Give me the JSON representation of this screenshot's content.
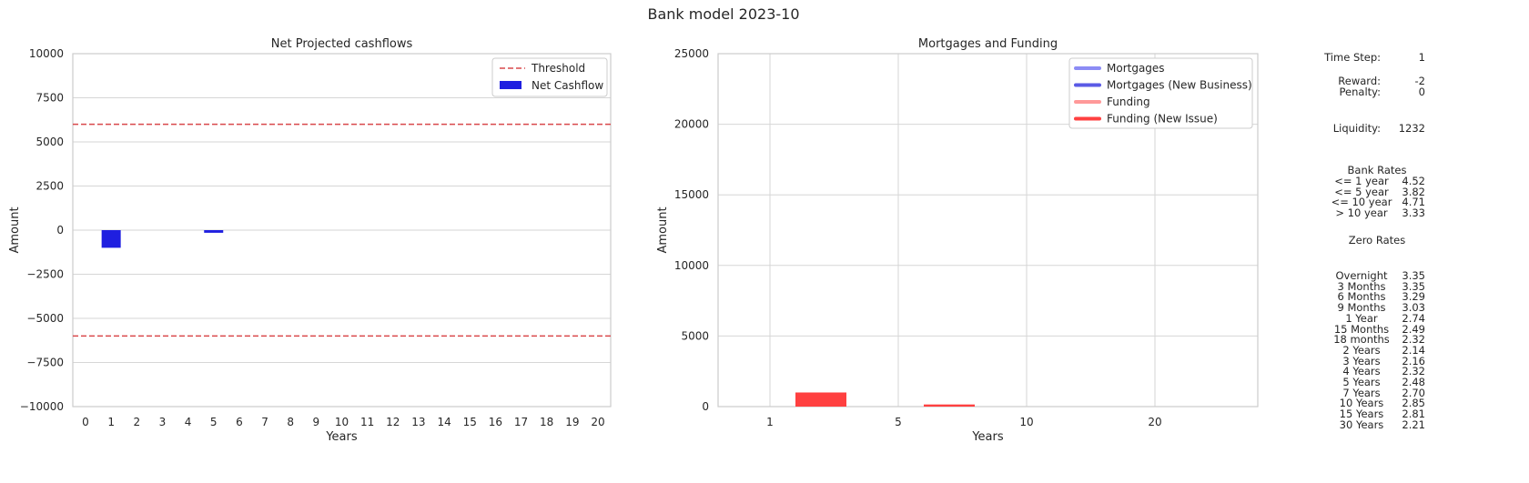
{
  "page": {
    "title": "Bank model 2023-10"
  },
  "colors": {
    "net_cashflow": "#1f1fe0",
    "threshold": "#d9484b",
    "mortgages": "#8c8cf5",
    "mortgages_new": "#5a5ae6",
    "funding": "#ff9999",
    "funding_new": "#ff4040",
    "grid": "#d6d6d6",
    "axes": "#cccccc"
  },
  "chart_data": [
    {
      "type": "bar",
      "title": "Net Projected cashflows",
      "xlabel": "Years",
      "ylabel": "Amount",
      "categories": [
        "0",
        "1",
        "2",
        "3",
        "4",
        "5",
        "6",
        "7",
        "8",
        "9",
        "10",
        "11",
        "12",
        "13",
        "14",
        "15",
        "16",
        "17",
        "18",
        "19",
        "20"
      ],
      "series": [
        {
          "name": "Net Cashflow",
          "values": [
            0,
            -1000,
            0,
            0,
            0,
            -150,
            0,
            0,
            0,
            0,
            0,
            0,
            0,
            0,
            0,
            0,
            0,
            0,
            0,
            0,
            0
          ]
        }
      ],
      "thresholds": {
        "name": "Threshold",
        "values": [
          6000,
          -6000
        ]
      },
      "ylim": [
        -10000,
        10000
      ],
      "yticks": [
        "10000",
        "7500",
        "5000",
        "2500",
        "0",
        "−2500",
        "−5000",
        "−7500",
        "−10000"
      ],
      "ytick_values": [
        10000,
        7500,
        5000,
        2500,
        0,
        -2500,
        -5000,
        -7500,
        -10000
      ],
      "grid": true,
      "legend": "top-right"
    },
    {
      "type": "bar",
      "title": "Mortgages and Funding",
      "xlabel": "Years",
      "ylabel": "Amount",
      "categories": [
        "1",
        "5",
        "10",
        "20"
      ],
      "series": [
        {
          "name": "Mortgages",
          "values": [
            0,
            0,
            0,
            0
          ]
        },
        {
          "name": "Mortgages (New Business)",
          "values": [
            0,
            0,
            0,
            0
          ]
        },
        {
          "name": "Funding",
          "values": [
            0,
            0,
            0,
            0
          ]
        },
        {
          "name": "Funding (New Issue)",
          "values": [
            1000,
            150,
            0,
            0
          ]
        }
      ],
      "ylim": [
        0,
        25000
      ],
      "yticks": [
        "25000",
        "20000",
        "15000",
        "10000",
        "5000",
        "0"
      ],
      "ytick_values": [
        25000,
        20000,
        15000,
        10000,
        5000,
        0
      ],
      "grid": true,
      "legend": "top-right"
    }
  ],
  "side_panel": {
    "time_step": {
      "label": "Time Step:",
      "value": "1"
    },
    "reward": {
      "label": "Reward:",
      "value": "-2"
    },
    "penalty": {
      "label": "Penalty:",
      "value": "0"
    },
    "liquidity": {
      "label": "Liquidity:",
      "value": "1232"
    },
    "bank_rates_title": "Bank Rates",
    "bank_rates": [
      {
        "label": "<= 1 year",
        "value": "4.52"
      },
      {
        "label": "<= 5 year",
        "value": "3.82"
      },
      {
        "label": "<= 10 year",
        "value": "4.71"
      },
      {
        "label": "> 10 year",
        "value": "3.33"
      }
    ],
    "zero_rates_title": "Zero Rates",
    "zero_rates": [
      {
        "label": "Overnight",
        "value": "3.35"
      },
      {
        "label": "3 Months",
        "value": "3.35"
      },
      {
        "label": "6 Months",
        "value": "3.29"
      },
      {
        "label": "9 Months",
        "value": "3.03"
      },
      {
        "label": "1 Year",
        "value": "2.74"
      },
      {
        "label": "15 Months",
        "value": "2.49"
      },
      {
        "label": "18 months",
        "value": "2.32"
      },
      {
        "label": "2 Years",
        "value": "2.14"
      },
      {
        "label": "3 Years",
        "value": "2.16"
      },
      {
        "label": "4 Years",
        "value": "2.32"
      },
      {
        "label": "5 Years",
        "value": "2.48"
      },
      {
        "label": "7 Years",
        "value": "2.70"
      },
      {
        "label": "10 Years",
        "value": "2.85"
      },
      {
        "label": "15 Years",
        "value": "2.81"
      },
      {
        "label": "30 Years",
        "value": "2.21"
      }
    ]
  }
}
